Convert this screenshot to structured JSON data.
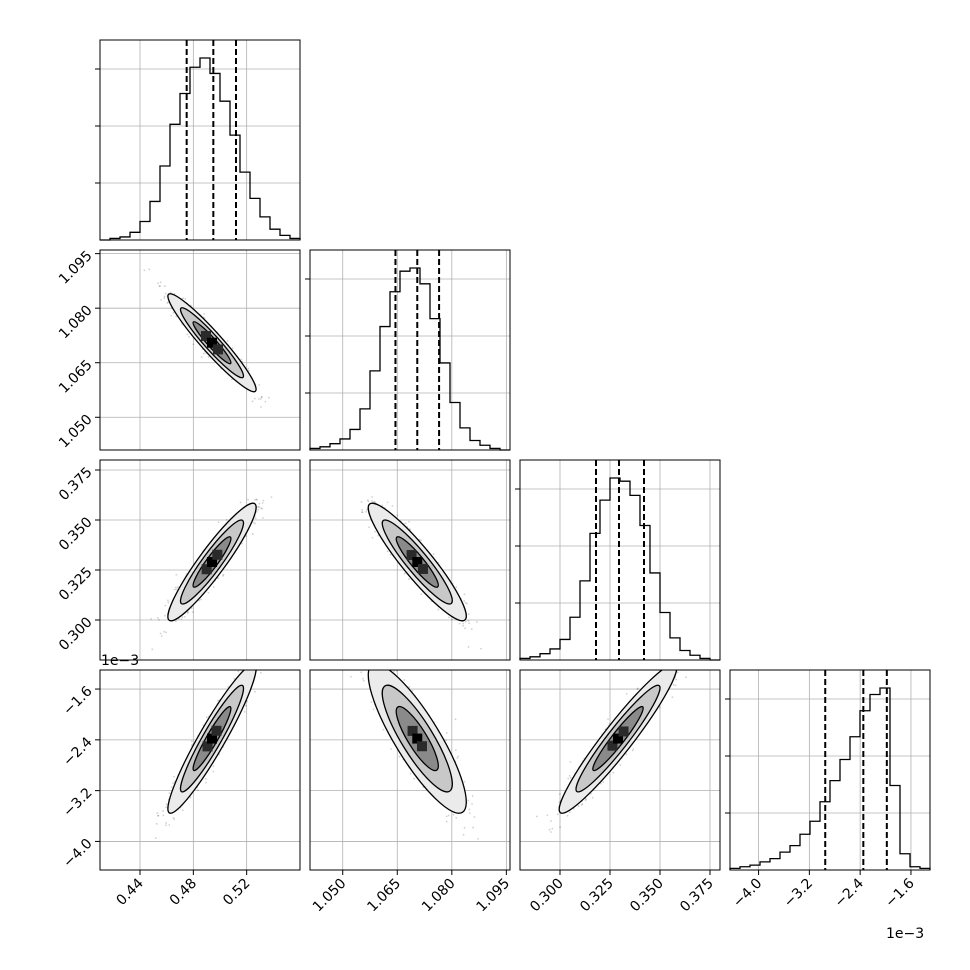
{
  "chart_data": {
    "type": "corner",
    "parameters": [
      {
        "range": [
          0.41,
          0.56
        ],
        "ticks": [
          0.44,
          0.48,
          0.52
        ],
        "tick_labels": [
          "0.44",
          "0.48",
          "0.52"
        ],
        "quantiles": [
          0.475,
          0.495,
          0.512
        ],
        "mean": 0.494,
        "sd": 0.0135
      },
      {
        "range": [
          1.041,
          1.096
        ],
        "ticks": [
          1.05,
          1.065,
          1.08,
          1.095
        ],
        "tick_labels": [
          "1.050",
          "1.065",
          "1.080",
          "1.095"
        ],
        "quantiles": [
          1.0645,
          1.0705,
          1.0765
        ],
        "mean": 1.0705,
        "sd": 0.0055
      },
      {
        "range": [
          0.28,
          0.38
        ],
        "ticks": [
          0.3,
          0.325,
          0.35,
          0.375
        ],
        "tick_labels": [
          "0.300",
          "0.325",
          "0.350",
          "0.375"
        ],
        "quantiles": [
          0.318,
          0.3295,
          0.342
        ],
        "mean": 0.329,
        "sd": 0.012
      },
      {
        "range": [
          -4.45,
          -1.3
        ],
        "ticks": [
          -4.0,
          -3.2,
          -2.4,
          -1.6
        ],
        "tick_labels": [
          "−4.0",
          "−3.2",
          "−2.4",
          "−1.6"
        ],
        "quantiles": [
          -2.95,
          -2.35,
          -1.98
        ],
        "mean": -2.38,
        "sd": 0.48,
        "skew": "left"
      }
    ],
    "axis_scale_exponent": "1e−3",
    "histograms": [
      {
        "param": 0,
        "counts": [
          0,
          1,
          2,
          5,
          12,
          25,
          48,
          75,
          95,
          112,
          118,
          108,
          90,
          68,
          44,
          27,
          15,
          7,
          3,
          1
        ]
      },
      {
        "param": 1,
        "counts": [
          1,
          2,
          4,
          7,
          13,
          26,
          50,
          78,
          100,
          113,
          115,
          105,
          83,
          55,
          30,
          14,
          6,
          3,
          1,
          0
        ]
      },
      {
        "param": 2,
        "counts": [
          1,
          2,
          4,
          7,
          13,
          27,
          50,
          80,
          101,
          115,
          113,
          104,
          85,
          55,
          30,
          14,
          6,
          3,
          1,
          0
        ]
      },
      {
        "param": 3,
        "counts": [
          1,
          2,
          3,
          5,
          7,
          11,
          15,
          22,
          30,
          42,
          55,
          68,
          82,
          98,
          108,
          112,
          52,
          10,
          2,
          1
        ]
      }
    ],
    "correlations": {
      "1-0": -0.95,
      "2-0": 0.93,
      "2-1": -0.92,
      "3-0": 0.94,
      "3-1": -0.85,
      "3-2": 0.95
    },
    "grid": true,
    "quantile_line_style": "dashed"
  }
}
